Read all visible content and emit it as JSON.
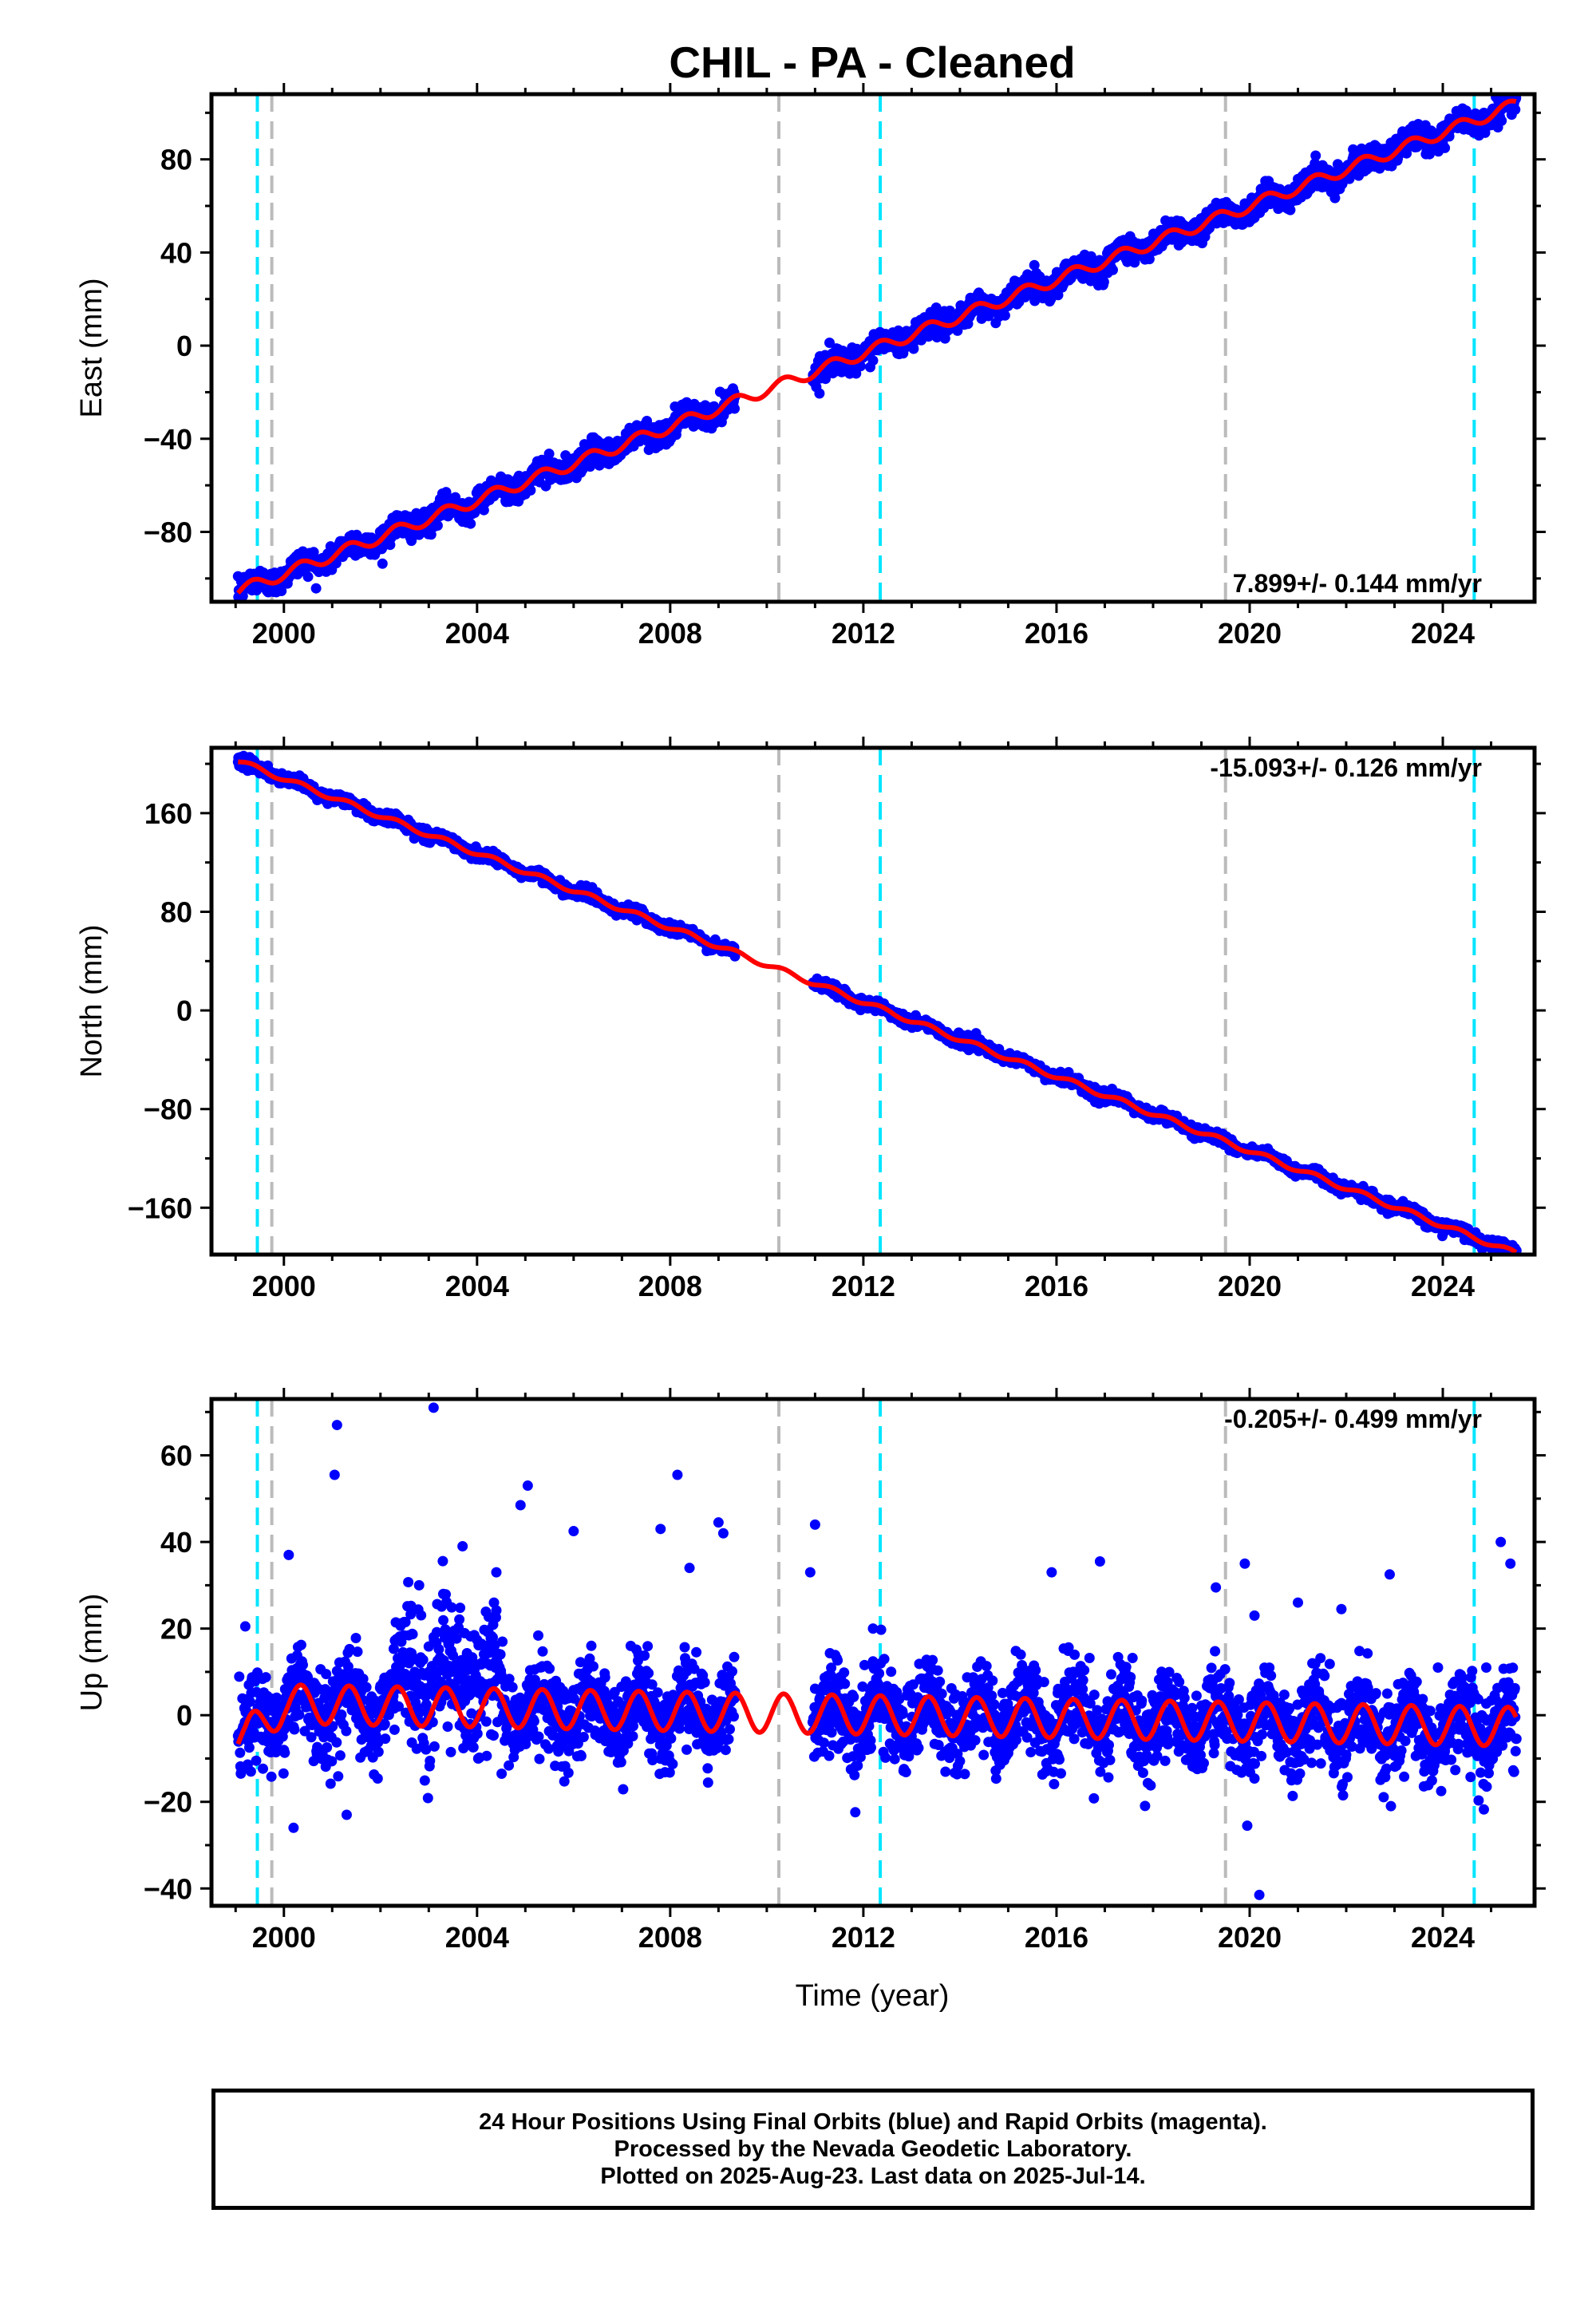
{
  "title": "CHIL  - PA - Cleaned",
  "x_axis_label": "Time (year)",
  "colors": {
    "points": "#0000ff",
    "model": "#ff0000",
    "equipment_change": "#00e5ff",
    "other_event": "#bbbbbb",
    "frame": "#000000"
  },
  "footer": {
    "line1": "24 Hour Positions Using Final Orbits (blue) and Rapid Orbits (magenta).",
    "line2": "Processed by the Nevada Geodetic Laboratory.",
    "line3": "Plotted on 2025-Aug-23. Last data on 2025-Jul-14."
  },
  "chart_data": [
    {
      "type": "scatter",
      "panel": "east",
      "ylabel": "East (mm)",
      "rate_label": "7.899+/- 0.144 mm/yr",
      "rate_label_position": "bottom-right",
      "xlim": [
        1998.5,
        2025.9
      ],
      "ylim": [
        -110,
        108
      ],
      "x_ticks": [
        2000,
        2004,
        2008,
        2012,
        2016,
        2020,
        2024
      ],
      "y_ticks": [
        -80,
        -40,
        0,
        40,
        80
      ],
      "data_range": [
        1999.05,
        2025.53
      ],
      "gap": [
        2009.35,
        2010.95
      ],
      "trend": {
        "value_at_2010": -19,
        "rate_mm_per_yr": 7.899
      },
      "seasonal_amplitude": 2.5,
      "scatter_sd": 2.6,
      "step_at_2000": 0,
      "dashed_lines": {
        "cyan": [
          1999.45,
          2012.35,
          2024.65
        ],
        "gray": [
          1999.75,
          2010.25,
          2019.5
        ]
      }
    },
    {
      "type": "scatter",
      "panel": "north",
      "ylabel": "North (mm)",
      "rate_label": "-15.093+/- 0.126 mm/yr",
      "rate_label_position": "top-right",
      "xlim": [
        1998.5,
        2025.9
      ],
      "ylim": [
        -198,
        213
      ],
      "x_ticks": [
        2000,
        2004,
        2008,
        2012,
        2016,
        2020,
        2024
      ],
      "y_ticks": [
        -160,
        -80,
        0,
        80,
        160
      ],
      "data_range": [
        1999.05,
        2025.53
      ],
      "gap": [
        2009.35,
        2010.95
      ],
      "trend": {
        "value_at_2010": 37,
        "rate_mm_per_yr": -15.093
      },
      "seasonal_amplitude": 2,
      "scatter_sd": 2.2,
      "step_at_2000": 0,
      "dashed_lines": {
        "cyan": [
          1999.45,
          2012.35,
          2024.65
        ],
        "gray": [
          1999.75,
          2010.25,
          2019.5
        ]
      }
    },
    {
      "type": "scatter",
      "panel": "up",
      "ylabel": "Up (mm)",
      "rate_label": "-0.205+/- 0.499 mm/yr",
      "rate_label_position": "top-right",
      "xlim": [
        1998.5,
        2025.9
      ],
      "ylim": [
        -44,
        73
      ],
      "x_ticks": [
        2000,
        2004,
        2008,
        2012,
        2016,
        2020,
        2024
      ],
      "y_ticks": [
        -40,
        -20,
        0,
        20,
        40,
        60
      ],
      "data_range": [
        1999.05,
        2025.53
      ],
      "gap": [
        2009.35,
        2010.95
      ],
      "trend": {
        "value_at_2010": 0.5,
        "rate_mm_per_yr": -0.205
      },
      "seasonal_amplitude": 4.5,
      "scatter_sd": 5,
      "step_at_2000": 8,
      "dashed_lines": {
        "cyan": [
          1999.45,
          2012.35,
          2024.65
        ],
        "gray": [
          1999.75,
          2010.25,
          2019.5
        ]
      },
      "outliers": [
        [
          1999.2,
          20.5
        ],
        [
          2000.1,
          37
        ],
        [
          2001.1,
          67
        ],
        [
          2001.05,
          55.5
        ],
        [
          2003.1,
          71
        ],
        [
          2003.7,
          39
        ],
        [
          2004.4,
          33
        ],
        [
          2005.05,
          53
        ],
        [
          2004.9,
          48.5
        ],
        [
          2006.0,
          42.5
        ],
        [
          2007.8,
          43
        ],
        [
          2008.15,
          55.5
        ],
        [
          2008.4,
          34
        ],
        [
          2009.0,
          44.5
        ],
        [
          2009.1,
          42
        ],
        [
          2011.0,
          44
        ],
        [
          2010.9,
          33
        ],
        [
          2012.2,
          20
        ],
        [
          2015.9,
          33
        ],
        [
          2016.9,
          35.5
        ],
        [
          2019.3,
          29.5
        ],
        [
          2019.9,
          35
        ],
        [
          2020.1,
          23
        ],
        [
          2019.95,
          -25.5
        ],
        [
          2020.2,
          -41.5
        ],
        [
          2021.0,
          26
        ],
        [
          2021.9,
          24.5
        ],
        [
          2022.9,
          32.5
        ],
        [
          2023.9,
          11
        ],
        [
          2024.9,
          11
        ],
        [
          2025.2,
          40
        ],
        [
          2025.4,
          35
        ],
        [
          2000.2,
          -26
        ],
        [
          2001.3,
          -23
        ],
        [
          2002.8,
          30
        ],
        [
          2003.3,
          28
        ]
      ]
    }
  ]
}
